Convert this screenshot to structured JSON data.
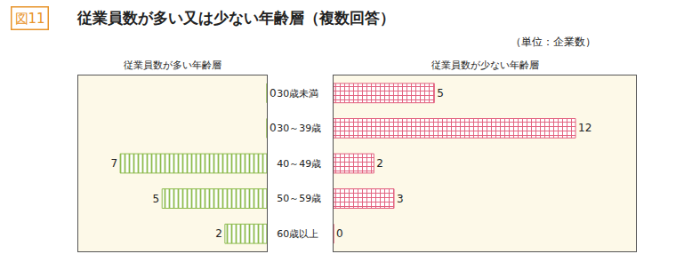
{
  "header": {
    "label": "図11",
    "title": "従業員数が多い又は少ない年齢層（複数回答）",
    "unit": "（単位：企業数）"
  },
  "chart_data": [
    {
      "type": "bar",
      "title": "従業員数が多い年齢層",
      "orientation": "horizontal",
      "categories": [
        "30歳未満",
        "30～39歳",
        "40～49歳",
        "50～59歳",
        "60歳以上"
      ],
      "values": [
        0,
        0,
        7,
        5,
        2
      ],
      "color": "#8dbb4c",
      "marker": "vertical_stripes",
      "xlim": [
        0,
        9
      ],
      "xticks": [],
      "tick_labels": "y",
      "data_labels": true,
      "grid": false
    },
    {
      "type": "bar",
      "title": "従業員数が少ない年齢層",
      "orientation": "horizontal",
      "categories": [
        "30歳未満",
        "30～39歳",
        "40～49歳",
        "50～59歳",
        "60歳以上"
      ],
      "values": [
        5,
        12,
        2,
        3,
        0
      ],
      "color": "#e2607e",
      "marker": "grid",
      "xlim": [
        0,
        15
      ],
      "xticks": [],
      "tick_labels": false,
      "data_labels": true,
      "grid": false
    }
  ]
}
